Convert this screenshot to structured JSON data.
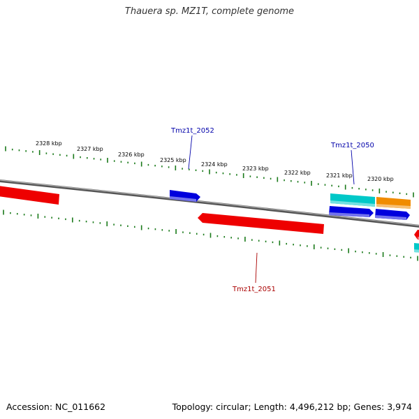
{
  "title": "Thauera sp. MZ1T, complete genome",
  "colors": {
    "backbone": "#808080",
    "ticks": "#1a7a1a",
    "gene_forward": "#0000dd",
    "gene_reverse": "#ee0000",
    "gene_cyan": "#00c8c8",
    "gene_orange": "#f08c00",
    "label_blue": "#0000aa",
    "label_red": "#aa0000"
  },
  "scale_labels": [
    "2328 kbp",
    "2327 kbp",
    "2326 kbp",
    "2325 kbp",
    "2324 kbp",
    "2323 kbp",
    "2322 kbp",
    "2321 kbp",
    "2320 kbp"
  ],
  "gene_labels": [
    {
      "text": "Tmz1t_2052",
      "color": "label_blue"
    },
    {
      "text": "Tmz1t_2050",
      "color": "label_blue"
    },
    {
      "text": "Tmz1t_2051",
      "color": "label_red"
    }
  ],
  "genes": [
    {
      "id": "gene-red-left",
      "strand": "reverse",
      "color": "gene_reverse"
    },
    {
      "id": "gene-blue-2052",
      "strand": "forward",
      "color": "gene_forward"
    },
    {
      "id": "gene-red-2051",
      "strand": "reverse",
      "color": "gene_reverse"
    },
    {
      "id": "gene-cyan-2050",
      "strand": "forward",
      "color": "gene_cyan"
    },
    {
      "id": "gene-orange",
      "strand": "forward",
      "color": "gene_orange"
    },
    {
      "id": "gene-blue-lower",
      "strand": "forward",
      "color": "gene_forward"
    },
    {
      "id": "gene-blue-right",
      "strand": "forward",
      "color": "gene_forward"
    },
    {
      "id": "gene-red-edge",
      "strand": "reverse",
      "color": "gene_reverse"
    },
    {
      "id": "gene-cyan-edge",
      "strand": "forward",
      "color": "gene_cyan"
    }
  ],
  "footer": {
    "accession": "Accession: NC_011662",
    "topology": "Topology: circular; Length: 4,496,212 bp; Genes: 3,974"
  }
}
